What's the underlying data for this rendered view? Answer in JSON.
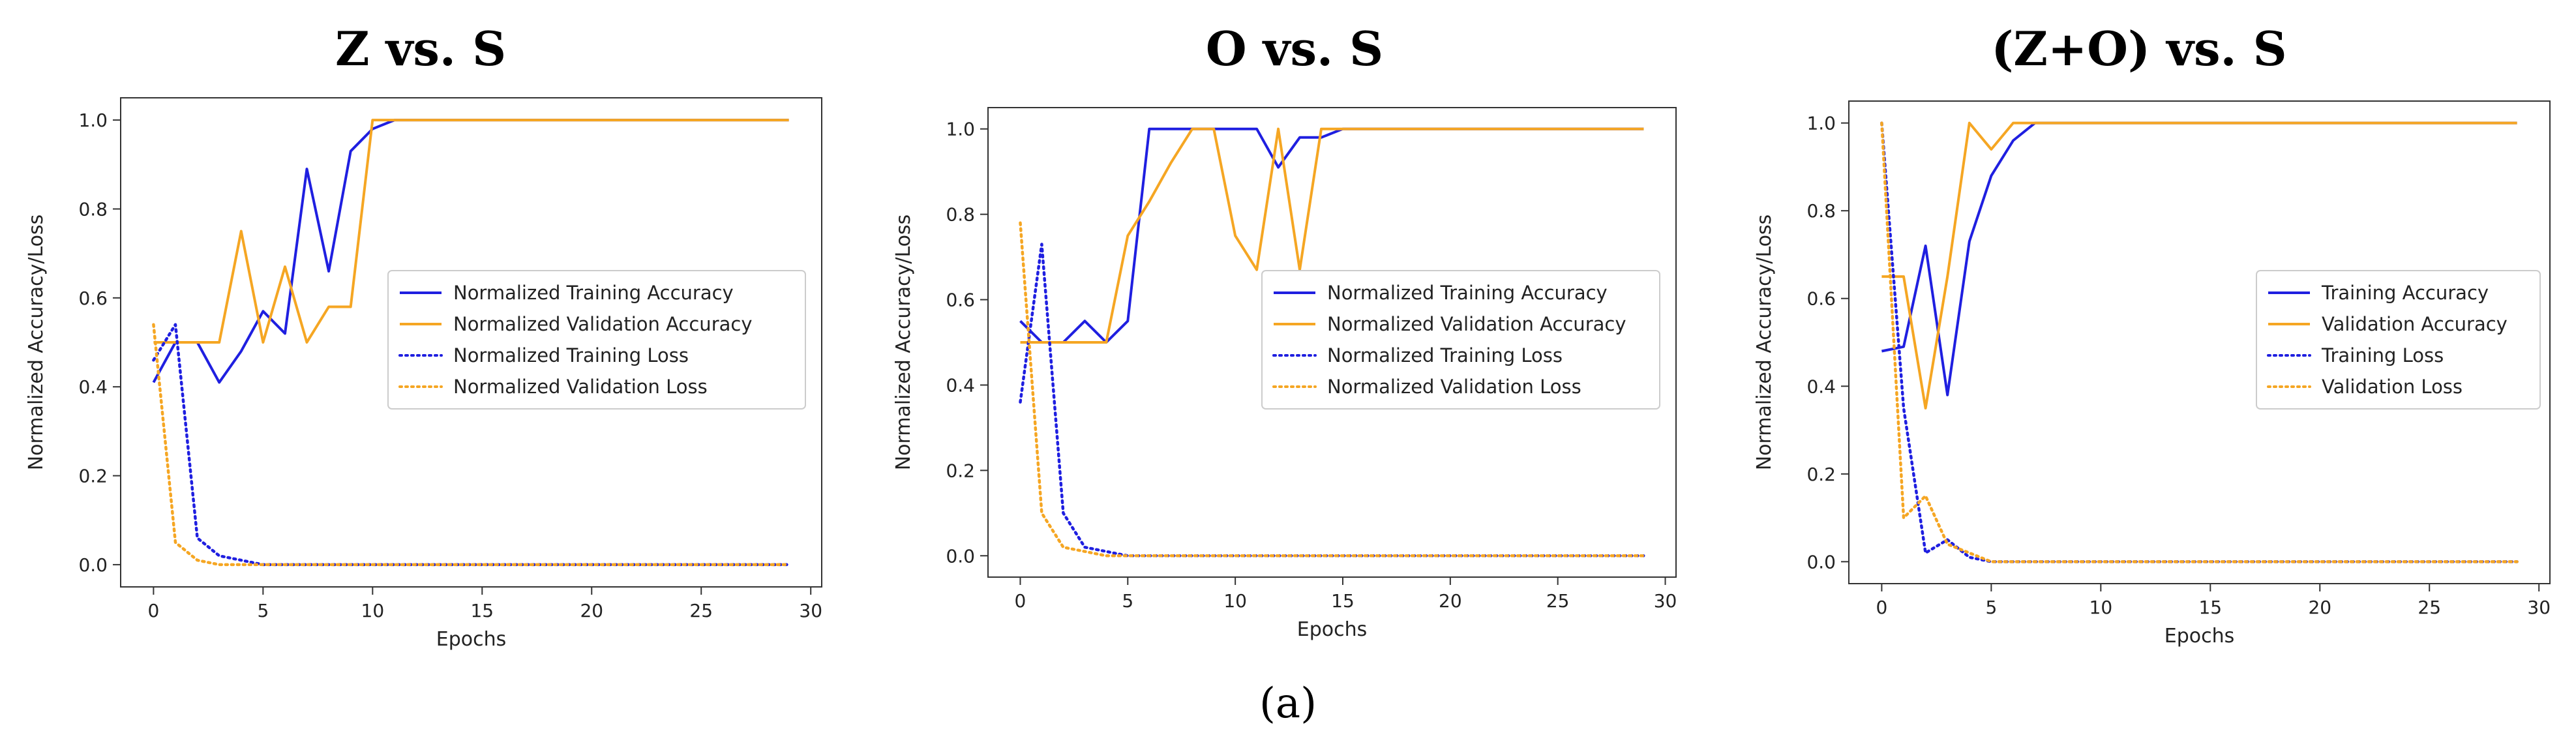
{
  "caption": "(a)",
  "colors": {
    "training": "#1f1fe0",
    "validation": "#f5a623"
  },
  "chart_data": [
    {
      "type": "line",
      "title": "Z vs. S",
      "xlabel": "Epochs",
      "ylabel": "Normalized Accuracy/Loss",
      "xlim": [
        -1.5,
        30.5
      ],
      "ylim": [
        -0.05,
        1.05
      ],
      "xticks": [
        0,
        5,
        10,
        15,
        20,
        25,
        30
      ],
      "yticks": [
        0.0,
        0.2,
        0.4,
        0.6,
        0.8,
        1.0
      ],
      "legend_position": "center-right",
      "series": [
        {
          "name": "Normalized Training Accuracy",
          "color": "training",
          "style": "solid",
          "x": [
            0,
            1,
            2,
            3,
            4,
            5,
            6,
            7,
            8,
            9,
            10,
            11,
            29
          ],
          "y": [
            0.41,
            0.5,
            0.5,
            0.41,
            0.48,
            0.57,
            0.52,
            0.89,
            0.66,
            0.93,
            0.98,
            1.0,
            1.0
          ]
        },
        {
          "name": "Normalized Validation Accuracy",
          "color": "validation",
          "style": "solid",
          "x": [
            0,
            1,
            2,
            3,
            4,
            5,
            6,
            7,
            8,
            9,
            10,
            29
          ],
          "y": [
            0.5,
            0.5,
            0.5,
            0.5,
            0.75,
            0.5,
            0.67,
            0.5,
            0.58,
            0.58,
            1.0,
            1.0
          ]
        },
        {
          "name": "Normalized Training Loss",
          "color": "training",
          "style": "dotted",
          "x": [
            0,
            1,
            2,
            3,
            4,
            5,
            29
          ],
          "y": [
            0.46,
            0.54,
            0.06,
            0.02,
            0.01,
            0.0,
            0.0
          ]
        },
        {
          "name": "Normalized Validation Loss",
          "color": "validation",
          "style": "dotted",
          "x": [
            0,
            1,
            2,
            3,
            4,
            29
          ],
          "y": [
            0.54,
            0.05,
            0.01,
            0.0,
            0.0,
            0.0
          ]
        }
      ]
    },
    {
      "type": "line",
      "title": "O vs. S",
      "xlabel": "Epochs",
      "ylabel": "Normalized Accuracy/Loss",
      "xlim": [
        -1.5,
        30.5
      ],
      "ylim": [
        -0.05,
        1.05
      ],
      "xticks": [
        0,
        5,
        10,
        15,
        20,
        25,
        30
      ],
      "yticks": [
        0.0,
        0.2,
        0.4,
        0.6,
        0.8,
        1.0
      ],
      "legend_position": "center-right",
      "series": [
        {
          "name": "Normalized Training Accuracy",
          "color": "training",
          "style": "solid",
          "x": [
            0,
            1,
            2,
            3,
            4,
            5,
            6,
            7,
            8,
            9,
            10,
            11,
            12,
            13,
            14,
            15,
            29
          ],
          "y": [
            0.55,
            0.5,
            0.5,
            0.55,
            0.5,
            0.55,
            1.0,
            1.0,
            1.0,
            1.0,
            1.0,
            1.0,
            0.91,
            0.98,
            0.98,
            1.0,
            1.0
          ]
        },
        {
          "name": "Normalized Validation Accuracy",
          "color": "validation",
          "style": "solid",
          "x": [
            0,
            1,
            2,
            3,
            4,
            5,
            6,
            7,
            8,
            9,
            10,
            11,
            12,
            13,
            14,
            29
          ],
          "y": [
            0.5,
            0.5,
            0.5,
            0.5,
            0.5,
            0.75,
            0.83,
            0.92,
            1.0,
            1.0,
            0.75,
            0.67,
            1.0,
            0.67,
            1.0,
            1.0
          ]
        },
        {
          "name": "Normalized Training Loss",
          "color": "training",
          "style": "dotted",
          "x": [
            0,
            1,
            2,
            3,
            4,
            5,
            29
          ],
          "y": [
            0.36,
            0.73,
            0.1,
            0.02,
            0.01,
            0.0,
            0.0
          ]
        },
        {
          "name": "Normalized Validation Loss",
          "color": "validation",
          "style": "dotted",
          "x": [
            0,
            1,
            2,
            3,
            4,
            29
          ],
          "y": [
            0.78,
            0.1,
            0.02,
            0.01,
            0.0,
            0.0
          ]
        }
      ]
    },
    {
      "type": "line",
      "title": "(Z+O) vs. S",
      "xlabel": "Epochs",
      "ylabel": "Normalized Accuracy/Loss",
      "xlim": [
        -1.5,
        30.5
      ],
      "ylim": [
        -0.05,
        1.05
      ],
      "xticks": [
        0,
        5,
        10,
        15,
        20,
        25,
        30
      ],
      "yticks": [
        0.0,
        0.2,
        0.4,
        0.6,
        0.8,
        1.0
      ],
      "legend_position": "center-right",
      "series": [
        {
          "name": "Training Accuracy",
          "color": "training",
          "style": "solid",
          "x": [
            0,
            1,
            2,
            3,
            4,
            5,
            6,
            7,
            29
          ],
          "y": [
            0.48,
            0.49,
            0.72,
            0.38,
            0.73,
            0.88,
            0.96,
            1.0,
            1.0
          ]
        },
        {
          "name": "Validation Accuracy",
          "color": "validation",
          "style": "solid",
          "x": [
            0,
            1,
            2,
            3,
            4,
            5,
            6,
            7,
            29
          ],
          "y": [
            0.65,
            0.65,
            0.35,
            0.65,
            1.0,
            0.94,
            1.0,
            1.0,
            1.0
          ]
        },
        {
          "name": "Training Loss",
          "color": "training",
          "style": "dotted",
          "x": [
            0,
            1,
            2,
            3,
            4,
            5,
            29
          ],
          "y": [
            1.0,
            0.35,
            0.02,
            0.05,
            0.01,
            0.0,
            0.0
          ]
        },
        {
          "name": "Validation Loss",
          "color": "validation",
          "style": "dotted",
          "x": [
            0,
            1,
            2,
            3,
            4,
            5,
            29
          ],
          "y": [
            1.0,
            0.1,
            0.15,
            0.04,
            0.02,
            0.0,
            0.0
          ]
        }
      ]
    }
  ]
}
